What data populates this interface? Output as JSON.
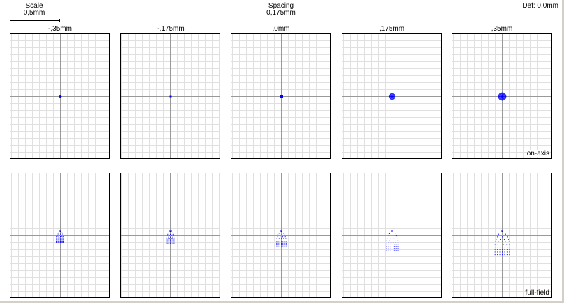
{
  "scale": {
    "title": "Scale",
    "value": "0,5mm"
  },
  "spacing": {
    "title": "Spacing",
    "value": "0,175mm"
  },
  "defocus": "Def: 0,0mm",
  "columns": [
    "-,35mm",
    "-,175mm",
    ",0mm",
    ",175mm",
    ",35mm"
  ],
  "rows": [
    "on-axis",
    "full-field"
  ],
  "colors": {
    "spot": "#0000ff",
    "grid": "#e0e0e0",
    "axis": "#999999",
    "border": "#000000"
  },
  "spot_sizes_on_axis": [
    0.6,
    0.3,
    0.8,
    1.6,
    2.2
  ],
  "spot_sizes_full_field": [
    0.55,
    0.6,
    0.75,
    0.95,
    1.15
  ]
}
